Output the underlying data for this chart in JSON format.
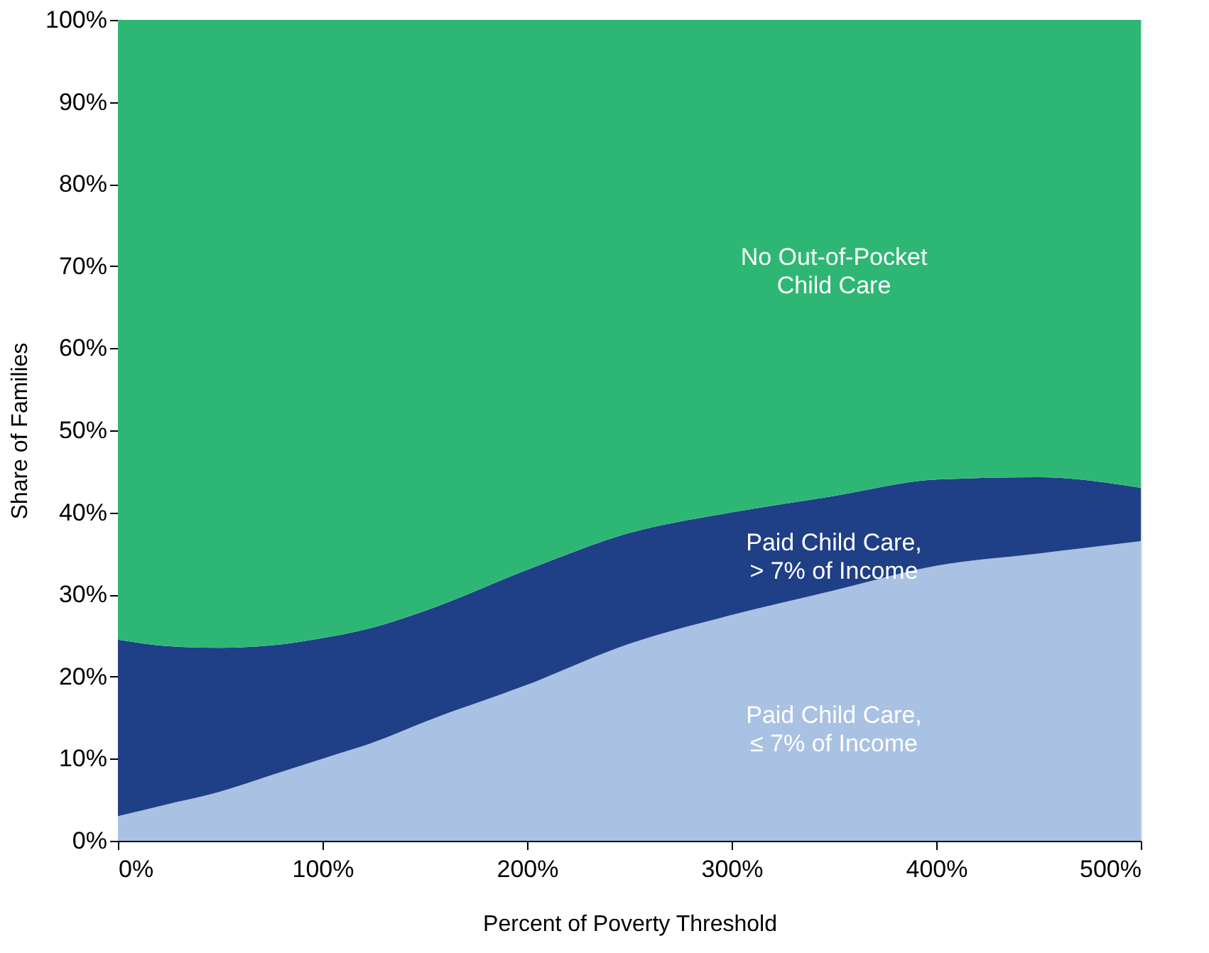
{
  "chart_data": {
    "type": "area",
    "stacked": true,
    "xlabel": "Percent of Poverty Threshold",
    "ylabel": "Share of Families",
    "x": [
      0,
      25,
      50,
      75,
      100,
      125,
      150,
      200,
      250,
      300,
      350,
      400,
      450,
      500
    ],
    "series": [
      {
        "name": "Paid Child Care,\n≤ 7% of Income",
        "color": "#a9c1e3",
        "values": [
          3,
          4.5,
          6,
          8,
          10,
          12,
          14.5,
          19,
          24,
          27.5,
          30.5,
          33.5,
          35,
          36.5
        ]
      },
      {
        "name": "Paid Child Care,\n> 7% of Income",
        "color": "#1f3f87",
        "values": [
          21.5,
          19.2,
          17.5,
          15.8,
          14.7,
          14,
          13.5,
          14,
          13.5,
          12.5,
          11.5,
          10.5,
          9.3,
          6.5
        ]
      },
      {
        "name": "No Out-of-Pocket\nChild Care",
        "color": "#2eb774",
        "values": [
          75.5,
          76.3,
          76.5,
          76.2,
          75.3,
          74,
          72,
          67,
          62.5,
          60,
          58,
          56,
          55.7,
          57
        ]
      }
    ],
    "xlim": [
      0,
      500
    ],
    "ylim": [
      0,
      100
    ],
    "xticks": [
      {
        "value": 0,
        "label": "0%"
      },
      {
        "value": 100,
        "label": "100%"
      },
      {
        "value": 200,
        "label": "200%"
      },
      {
        "value": 300,
        "label": "300%"
      },
      {
        "value": 400,
        "label": "400%"
      },
      {
        "value": 500,
        "label": "500%"
      }
    ],
    "yticks": [
      {
        "value": 0,
        "label": "0%"
      },
      {
        "value": 10,
        "label": "10%"
      },
      {
        "value": 20,
        "label": "20%"
      },
      {
        "value": 30,
        "label": "30%"
      },
      {
        "value": 40,
        "label": "40%"
      },
      {
        "value": 50,
        "label": "50%"
      },
      {
        "value": 60,
        "label": "60%"
      },
      {
        "value": 70,
        "label": "70%"
      },
      {
        "value": 80,
        "label": "80%"
      },
      {
        "value": 90,
        "label": "90%"
      },
      {
        "value": 100,
        "label": "100%"
      }
    ],
    "grid": false
  }
}
